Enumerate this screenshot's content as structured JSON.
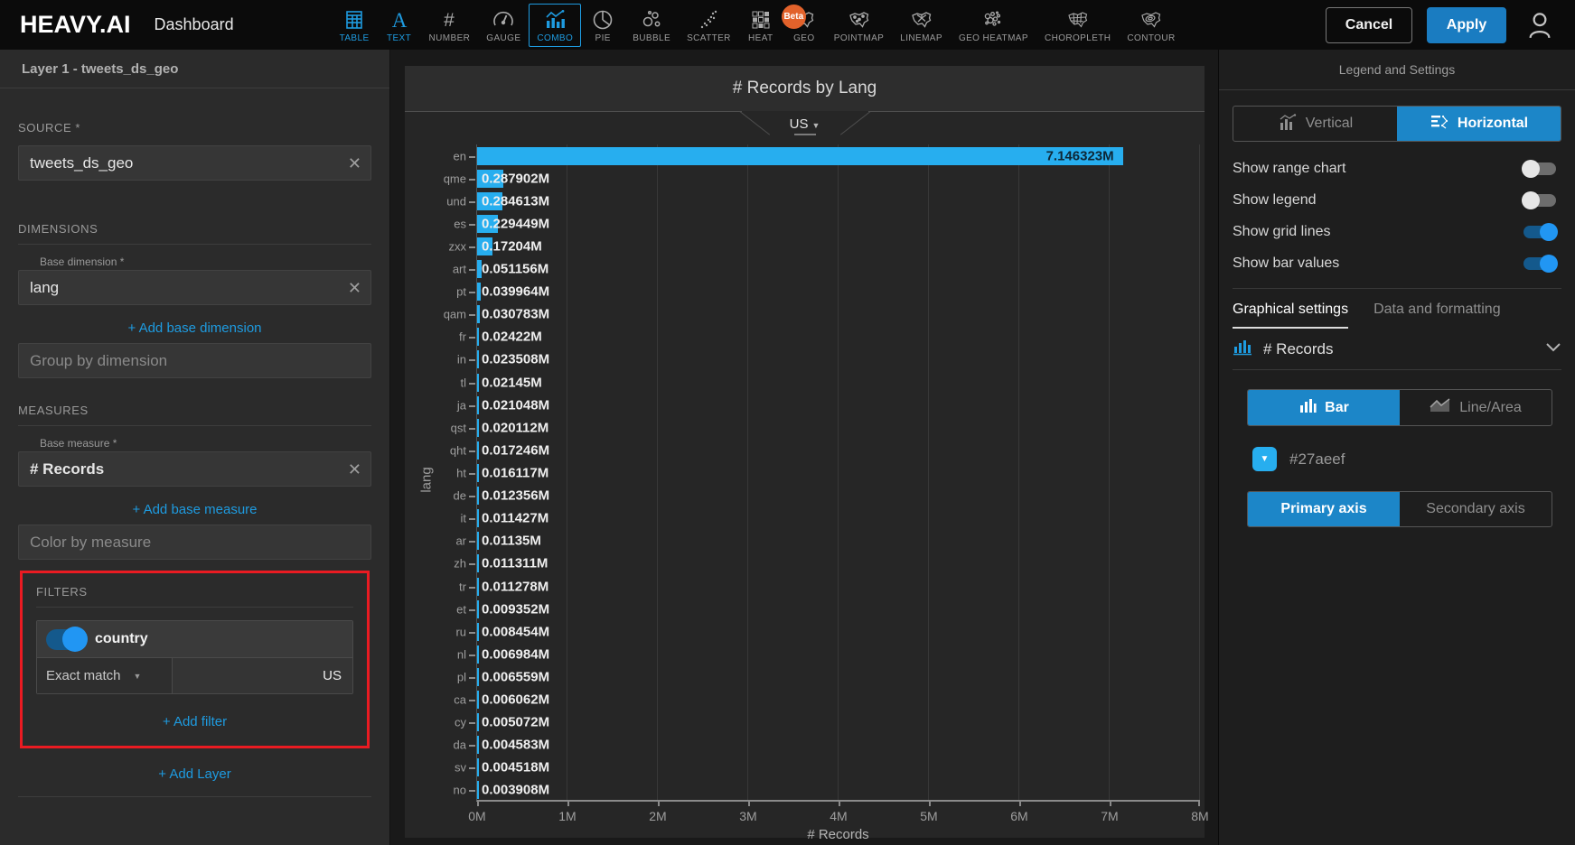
{
  "topbar": {
    "logo": "HEAVY.AI",
    "title": "Dashboard",
    "chart_types": [
      {
        "label": "TABLE",
        "icon": "table",
        "active": true
      },
      {
        "label": "TEXT",
        "icon": "text",
        "active": true
      },
      {
        "label": "NUMBER",
        "icon": "number",
        "active": false
      },
      {
        "label": "GAUGE",
        "icon": "gauge",
        "active": false
      },
      {
        "label": "COMBO",
        "icon": "combo",
        "active": true,
        "selected": true
      },
      {
        "label": "PIE",
        "icon": "pie",
        "active": false
      },
      {
        "label": "BUBBLE",
        "icon": "bubble",
        "active": false
      },
      {
        "label": "SCATTER",
        "icon": "scatter",
        "active": false
      },
      {
        "label": "HEAT",
        "icon": "heat",
        "active": false
      },
      {
        "label": "GEO",
        "icon": "geo",
        "active": false,
        "badge": "Beta"
      },
      {
        "label": "POINTMAP",
        "icon": "pointmap",
        "active": false
      },
      {
        "label": "LINEMAP",
        "icon": "linemap",
        "active": false
      },
      {
        "label": "GEO HEATMAP",
        "icon": "geoheatmap",
        "active": false
      },
      {
        "label": "CHOROPLETH",
        "icon": "choropleth",
        "active": false
      },
      {
        "label": "CONTOUR",
        "icon": "contour",
        "active": false
      }
    ],
    "cancel_label": "Cancel",
    "apply_label": "Apply"
  },
  "sidebar": {
    "layer_header": "Layer 1 - tweets_ds_geo",
    "source_label": "SOURCE *",
    "source_value": "tweets_ds_geo",
    "dimensions_label": "DIMENSIONS",
    "base_dimension_label": "Base dimension *",
    "base_dimension_value": "lang",
    "add_base_dimension": "+ Add base dimension",
    "group_by_placeholder": "Group by dimension",
    "measures_label": "MEASURES",
    "base_measure_label": "Base measure *",
    "base_measure_value": "# Records",
    "add_base_measure": "+ Add base measure",
    "color_by_placeholder": "Color by measure",
    "filters_label": "FILTERS",
    "filter": {
      "name": "country",
      "enabled": true,
      "match_type": "Exact match",
      "value": "US"
    },
    "add_filter": "+ Add filter",
    "add_layer": "+ Add Layer"
  },
  "chart": {
    "title": "# Records by Lang",
    "filter_chip": "US"
  },
  "chart_data": {
    "type": "bar",
    "orientation": "horizontal",
    "title": "# Records by Lang",
    "xlabel": "# Records",
    "ylabel": "lang",
    "xlim_m": [
      0,
      8
    ],
    "x_ticks": [
      "0M",
      "1M",
      "2M",
      "3M",
      "4M",
      "5M",
      "6M",
      "7M",
      "8M"
    ],
    "grid": true,
    "bar_color": "#27aeef",
    "categories": [
      "en",
      "qme",
      "und",
      "es",
      "zxx",
      "art",
      "pt",
      "qam",
      "fr",
      "in",
      "tl",
      "ja",
      "qst",
      "qht",
      "ht",
      "de",
      "it",
      "ar",
      "zh",
      "tr",
      "et",
      "ru",
      "nl",
      "pl",
      "ca",
      "cy",
      "da",
      "sv",
      "no"
    ],
    "values_m": [
      7.146323,
      0.287902,
      0.284613,
      0.229449,
      0.17204,
      0.051156,
      0.039964,
      0.030783,
      0.02422,
      0.023508,
      0.02145,
      0.021048,
      0.020112,
      0.017246,
      0.016117,
      0.012356,
      0.011427,
      0.01135,
      0.011311,
      0.011278,
      0.009352,
      0.008454,
      0.006984,
      0.006559,
      0.006062,
      0.005072,
      0.004583,
      0.004518,
      0.003908
    ],
    "value_labels": [
      "7.146323M",
      "0.287902M",
      "0.284613M",
      "0.229449M",
      "0.17204M",
      "0.051156M",
      "0.039964M",
      "0.030783M",
      "0.02422M",
      "0.023508M",
      "0.02145M",
      "0.021048M",
      "0.020112M",
      "0.017246M",
      "0.016117M",
      "0.012356M",
      "0.011427M",
      "0.01135M",
      "0.011311M",
      "0.011278M",
      "0.009352M",
      "0.008454M",
      "0.006984M",
      "0.006559M",
      "0.006062M",
      "0.005072M",
      "0.004583M",
      "0.004518M",
      "0.003908M"
    ]
  },
  "settings": {
    "header": "Legend and Settings",
    "orientation": {
      "vertical_label": "Vertical",
      "horizontal_label": "Horizontal",
      "selected": "Horizontal"
    },
    "toggles": [
      {
        "label": "Show range chart",
        "on": false
      },
      {
        "label": "Show legend",
        "on": false
      },
      {
        "label": "Show grid lines",
        "on": true
      },
      {
        "label": "Show bar values",
        "on": true
      }
    ],
    "tabs": {
      "active_label": "Graphical settings",
      "inactive_label": "Data and formatting"
    },
    "measure_row_label": "# Records",
    "kind": {
      "bar_label": "Bar",
      "line_label": "Line/Area",
      "selected": "Bar"
    },
    "color_hex": "#27aeef",
    "axis": {
      "primary_label": "Primary axis",
      "secondary_label": "Secondary axis",
      "selected": "Primary axis"
    }
  }
}
